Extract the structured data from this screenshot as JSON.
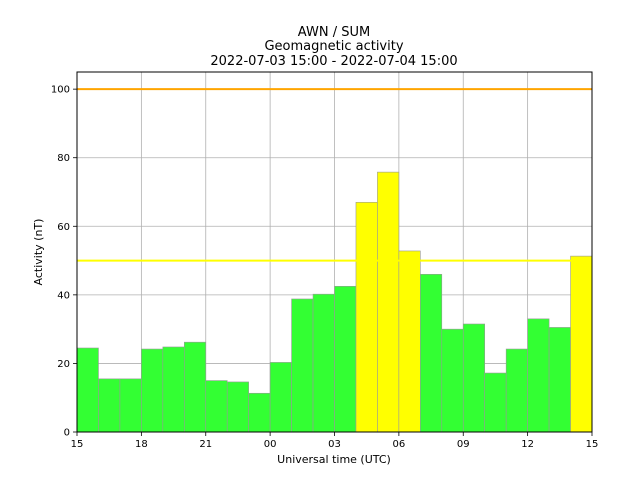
{
  "chart_data": {
    "type": "bar",
    "title": [
      "AWN / SUM",
      "Geomagnetic activity",
      "2022-07-03 15:00 - 2022-07-04 15:00"
    ],
    "xlabel": "Universal time (UTC)",
    "ylabel": "Activity (nT)",
    "xlim": [
      15,
      39
    ],
    "ylim": [
      0,
      105
    ],
    "xticks": [
      {
        "v": 15,
        "label": "15"
      },
      {
        "v": 18,
        "label": "18"
      },
      {
        "v": 21,
        "label": "21"
      },
      {
        "v": 24,
        "label": "00"
      },
      {
        "v": 27,
        "label": "03"
      },
      {
        "v": 30,
        "label": "06"
      },
      {
        "v": 33,
        "label": "09"
      },
      {
        "v": 36,
        "label": "12"
      },
      {
        "v": 39,
        "label": "15"
      }
    ],
    "yticks": [
      0,
      20,
      40,
      60,
      80,
      100
    ],
    "grid": true,
    "bars": [
      {
        "start": 15,
        "value": 24.5,
        "color": "#33ff33"
      },
      {
        "start": 16,
        "value": 15.5,
        "color": "#33ff33"
      },
      {
        "start": 17,
        "value": 15.5,
        "color": "#33ff33"
      },
      {
        "start": 18,
        "value": 24.2,
        "color": "#33ff33"
      },
      {
        "start": 19,
        "value": 24.8,
        "color": "#33ff33"
      },
      {
        "start": 20,
        "value": 26.2,
        "color": "#33ff33"
      },
      {
        "start": 21,
        "value": 15.0,
        "color": "#33ff33"
      },
      {
        "start": 22,
        "value": 14.6,
        "color": "#33ff33"
      },
      {
        "start": 23,
        "value": 11.3,
        "color": "#33ff33"
      },
      {
        "start": 24,
        "value": 20.3,
        "color": "#33ff33"
      },
      {
        "start": 25,
        "value": 38.8,
        "color": "#33ff33"
      },
      {
        "start": 26,
        "value": 40.2,
        "color": "#33ff33"
      },
      {
        "start": 27,
        "value": 42.5,
        "color": "#33ff33"
      },
      {
        "start": 28,
        "value": 67.0,
        "color": "#ffff00"
      },
      {
        "start": 29,
        "value": 75.8,
        "color": "#ffff00"
      },
      {
        "start": 30,
        "value": 52.8,
        "color": "#ffff00"
      },
      {
        "start": 31,
        "value": 46.0,
        "color": "#33ff33"
      },
      {
        "start": 32,
        "value": 30.0,
        "color": "#33ff33"
      },
      {
        "start": 33,
        "value": 31.5,
        "color": "#33ff33"
      },
      {
        "start": 34,
        "value": 17.2,
        "color": "#33ff33"
      },
      {
        "start": 35,
        "value": 24.2,
        "color": "#33ff33"
      },
      {
        "start": 36,
        "value": 33.0,
        "color": "#33ff33"
      },
      {
        "start": 37,
        "value": 30.5,
        "color": "#33ff33"
      },
      {
        "start": 38,
        "value": 51.3,
        "color": "#ffff00"
      }
    ],
    "threshold_lines": [
      {
        "value": 100,
        "color": "#ffa500"
      },
      {
        "value": 50,
        "color": "#ffff00"
      }
    ]
  }
}
